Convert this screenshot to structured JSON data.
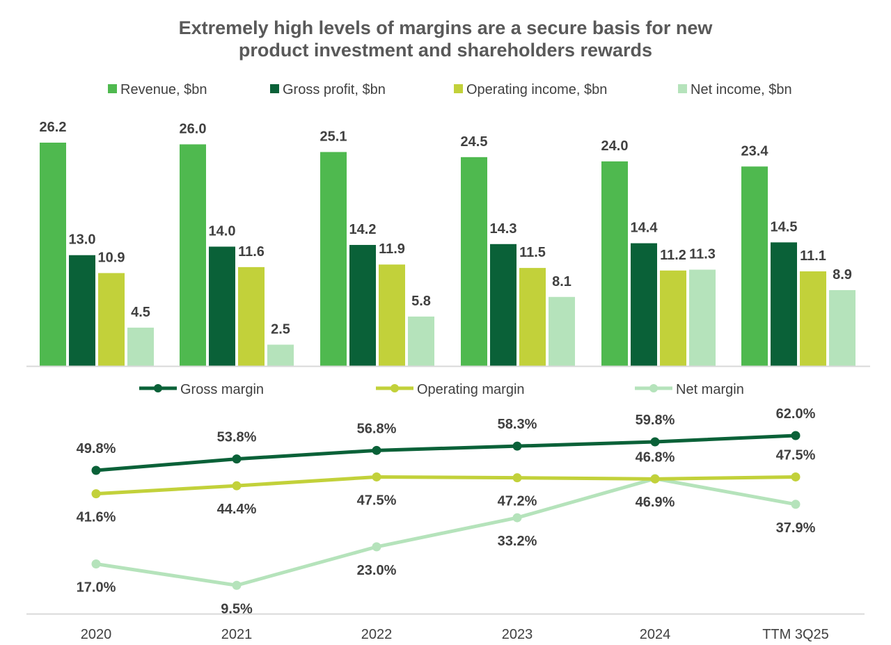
{
  "title_lines": [
    "Extremely high levels of margins are a secure basis for new",
    "product investment and shareholders rewards"
  ],
  "chart_data": [
    {
      "type": "bar",
      "categories": [
        "2020",
        "2021",
        "2022",
        "2023",
        "2024",
        "TTM 3Q25"
      ],
      "legend_position": "top",
      "series": [
        {
          "name": "Revenue, $bn",
          "color": "#4fb94f",
          "values": [
            26.2,
            26.0,
            25.1,
            24.5,
            24.0,
            23.4
          ]
        },
        {
          "name": "Gross profit, $bn",
          "color": "#0a6138",
          "values": [
            13.0,
            14.0,
            14.2,
            14.3,
            14.4,
            14.5
          ]
        },
        {
          "name": "Operating income, $bn",
          "color": "#c2d13a",
          "values": [
            10.9,
            11.6,
            11.9,
            11.5,
            11.2,
            11.1
          ]
        },
        {
          "name": "Net income, $bn",
          "color": "#b5e3bb",
          "values": [
            4.5,
            2.5,
            5.8,
            8.1,
            11.3,
            8.9
          ]
        }
      ],
      "ylim": [
        0,
        26.2
      ]
    },
    {
      "type": "line",
      "categories": [
        "2020",
        "2021",
        "2022",
        "2023",
        "2024",
        "TTM 3Q25"
      ],
      "legend_position": "top",
      "series": [
        {
          "name": "Gross margin",
          "color": "#0a6138",
          "values": [
            49.8,
            53.8,
            56.8,
            58.3,
            59.8,
            62.0
          ],
          "labels": [
            "49.8%",
            "53.8%",
            "56.8%",
            "58.3%",
            "59.8%",
            "62.0%"
          ],
          "label_side": [
            "above",
            "above",
            "above",
            "above",
            "above",
            "above"
          ]
        },
        {
          "name": "Operating margin",
          "color": "#c2d13a",
          "values": [
            41.6,
            44.4,
            47.5,
            47.2,
            46.8,
            47.5
          ],
          "labels": [
            "41.6%",
            "44.4%",
            "47.5%",
            "47.2%",
            "46.8%",
            "47.5%"
          ],
          "label_side": [
            "below",
            "below",
            "below",
            "below",
            "above",
            "above"
          ]
        },
        {
          "name": "Net margin",
          "color": "#b5e3bb",
          "values": [
            17.0,
            9.5,
            23.0,
            33.2,
            46.9,
            37.9
          ],
          "labels": [
            "17.0%",
            "9.5%",
            "23.0%",
            "33.2%",
            "46.9%",
            "37.9%"
          ],
          "label_side": [
            "below",
            "below",
            "below",
            "below",
            "below",
            "below"
          ]
        }
      ],
      "ylim": [
        9.5,
        62.0
      ]
    }
  ]
}
